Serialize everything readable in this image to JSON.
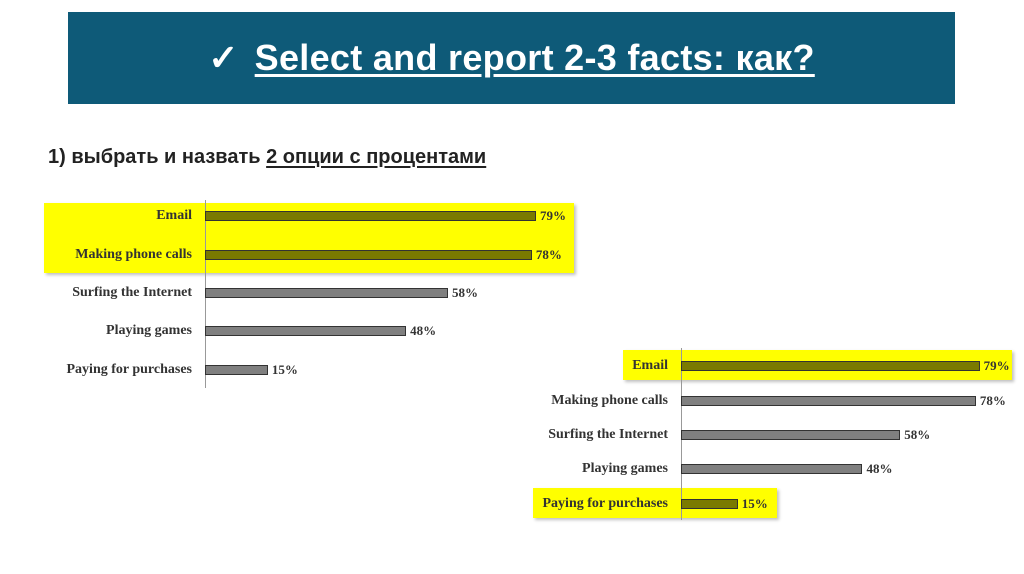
{
  "header": {
    "check_icon": "✓",
    "title": "Select and report 2-3 facts: как?",
    "background": "#0e5a78"
  },
  "subtitle": {
    "prefix": "1) выбрать и назвать ",
    "underlined": "2 опции с процентами"
  },
  "colors": {
    "highlight": "#ffff00",
    "highlighted_bar": "#7a7a00",
    "bar": "#808080"
  },
  "chart_data": [
    {
      "type": "bar",
      "orientation": "horizontal",
      "categories": [
        "Email",
        "Making phone calls",
        "Surfing the Internet",
        "Playing games",
        "Paying for purchases"
      ],
      "values": [
        79,
        78,
        58,
        48,
        15
      ],
      "data_labels": [
        "79%",
        "78%",
        "58%",
        "48%",
        "15%"
      ],
      "highlighted": [
        "Email",
        "Making phone calls"
      ],
      "xlim": [
        0,
        100
      ]
    },
    {
      "type": "bar",
      "orientation": "horizontal",
      "categories": [
        "Email",
        "Making phone calls",
        "Surfing the Internet",
        "Playing games",
        "Paying for purchases"
      ],
      "values": [
        79,
        78,
        58,
        48,
        15
      ],
      "data_labels": [
        "79%",
        "78%",
        "58%",
        "48%",
        "15%"
      ],
      "highlighted": [
        "Email",
        "Paying for purchases"
      ],
      "xlim": [
        0,
        100
      ]
    }
  ]
}
